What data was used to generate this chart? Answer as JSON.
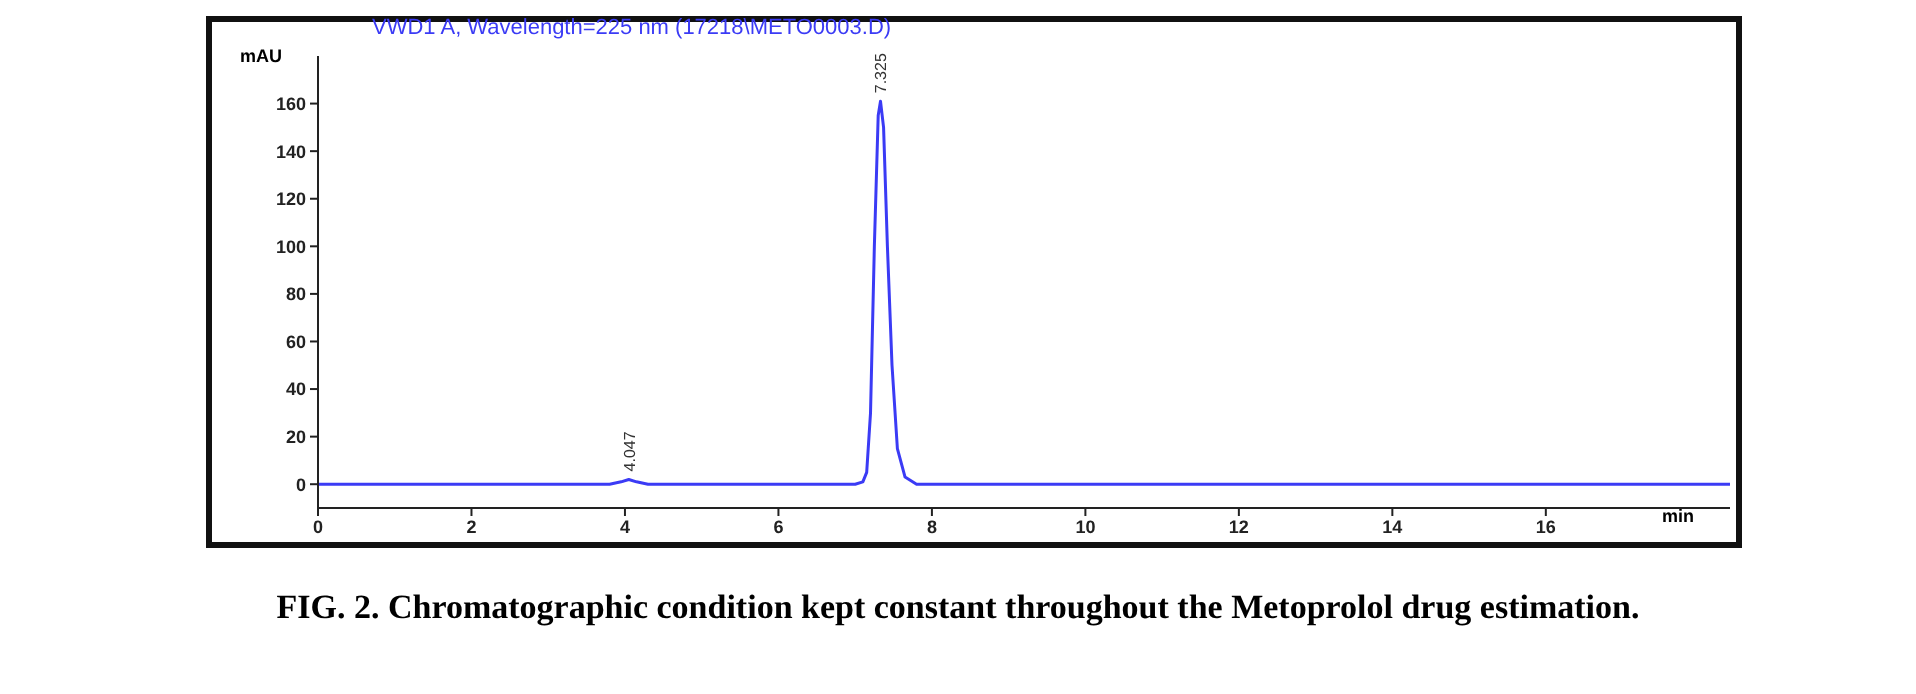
{
  "chart_data": {
    "type": "line",
    "title": "VWD1 A, Wavelength=225 nm (17218\\METO0003.D)",
    "ylabel": "mAU",
    "xlabel": "min",
    "x": [
      0,
      1,
      2,
      3,
      3.8,
      3.95,
      4.05,
      4.15,
      4.3,
      5,
      6,
      7,
      7.1,
      7.15,
      7.2,
      7.25,
      7.3,
      7.33,
      7.37,
      7.42,
      7.48,
      7.55,
      7.65,
      7.8,
      9,
      10,
      11,
      12,
      13,
      14,
      15,
      16,
      17,
      18.4
    ],
    "series": [
      {
        "color": "#3b3bf5",
        "values": [
          0,
          0,
          0,
          0,
          0,
          1,
          2,
          1,
          0,
          0,
          0,
          0,
          1,
          5,
          30,
          100,
          155,
          161,
          150,
          100,
          50,
          15,
          3,
          0,
          0,
          0,
          0,
          0,
          0,
          0,
          0,
          0,
          0,
          0
        ]
      }
    ],
    "xlim": [
      0,
      18.4
    ],
    "xticks": [
      0,
      2,
      4,
      6,
      8,
      10,
      12,
      14,
      16
    ],
    "ylim": [
      -10,
      180
    ],
    "yticks": [
      0,
      20,
      40,
      60,
      80,
      100,
      120,
      140,
      160
    ],
    "grid": false,
    "legend": false,
    "marker": "none",
    "line_style": "solid",
    "annotations": [
      {
        "text": "4.047",
        "x": 4.047,
        "y": 2
      },
      {
        "text": "7.325",
        "x": 7.325,
        "y": 161
      },
      "FIG. 2. Chromatographic condition kept constant throughout the Metoprolol drug estimation."
    ]
  }
}
